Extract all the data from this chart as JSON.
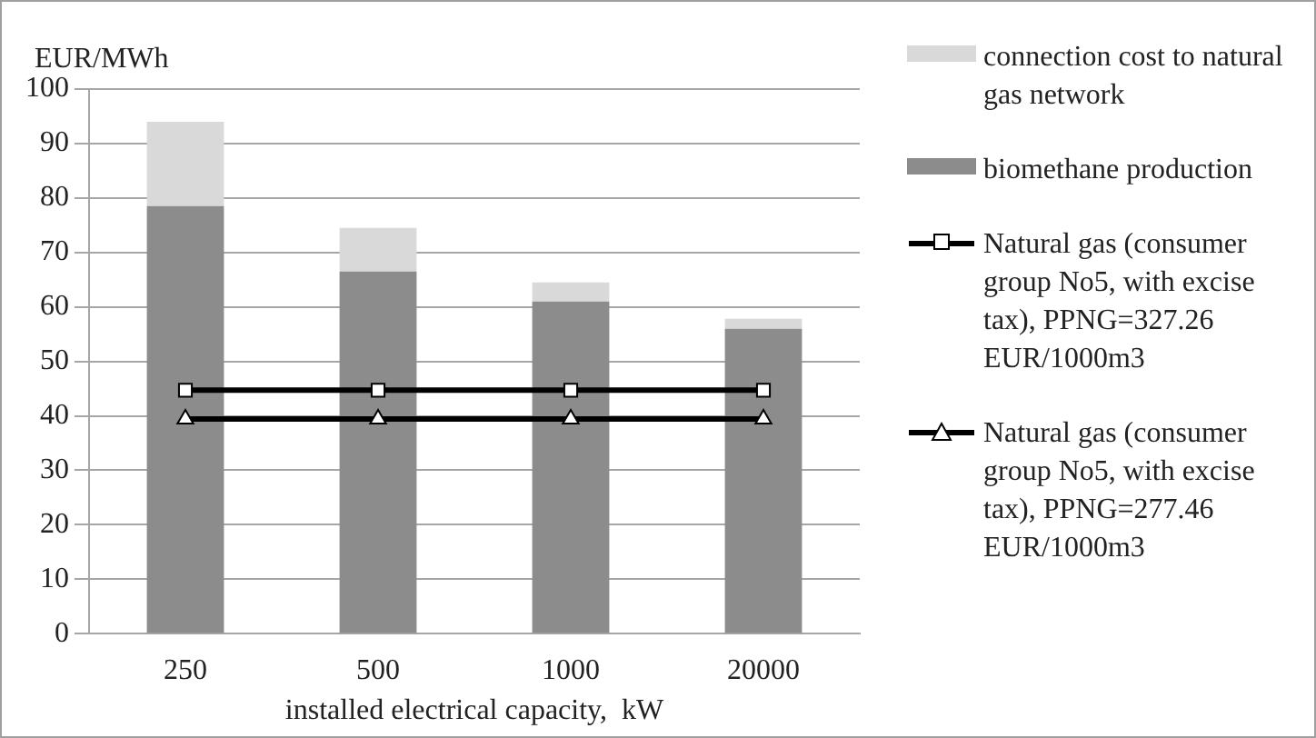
{
  "chart_data": {
    "type": "bar",
    "stacked": true,
    "ylabel": "EUR/MWh",
    "xlabel": "installed electrical capacity,  kW",
    "categories": [
      "250",
      "500",
      "1000",
      "20000"
    ],
    "series": [
      {
        "name": "biomethane production",
        "color": "#8c8c8c",
        "values": [
          78.5,
          66.5,
          61,
          56
        ]
      },
      {
        "name": "connection cost to natural gas network",
        "color": "#d9d9d9",
        "values": [
          15.5,
          8,
          3.5,
          1.8
        ]
      },
      {
        "name": "Natural gas (consumer group No5, with excise tax), PPNG=327.26 EUR/1000m3",
        "type": "line",
        "color": "#000000",
        "marker": "square",
        "values": [
          44.7,
          44.7,
          44.7,
          44.7
        ]
      },
      {
        "name": "Natural gas (consumer group No5, with excise tax), PPNG=277.46 EUR/1000m3",
        "type": "line",
        "color": "#000000",
        "marker": "triangle",
        "values": [
          39.4,
          39.4,
          39.4,
          39.4
        ]
      }
    ],
    "ylim": [
      0,
      100
    ],
    "yticks": [
      0,
      10,
      20,
      30,
      40,
      50,
      60,
      70,
      80,
      90,
      100
    ],
    "grid": "y",
    "legend": "right"
  }
}
